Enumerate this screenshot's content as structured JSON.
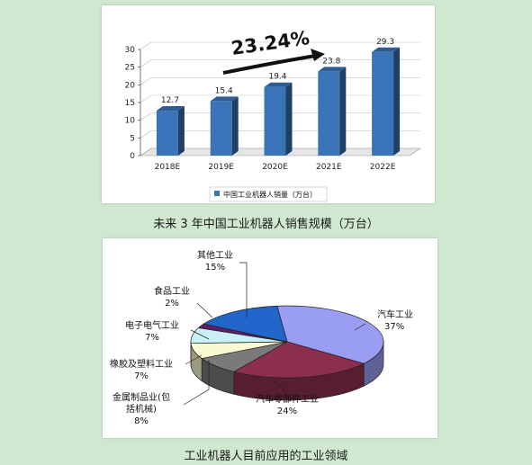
{
  "bar_caption": "未来 3 年中国工业机器人销售规模（万台）",
  "pie_caption": "工业机器人目前应用的工业领域",
  "colors": {
    "bar": "#3b73b8",
    "background": "#cfe8cf"
  },
  "chart_data": [
    {
      "type": "bar",
      "categories": [
        "2018E",
        "2019E",
        "2020E",
        "2021E",
        "2022E"
      ],
      "series": [
        {
          "name": "中国工业机器人销量（万台）",
          "values": [
            12.7,
            15.4,
            19.4,
            23.8,
            29.3
          ]
        }
      ],
      "data_labels": [
        "12.7",
        "15.4",
        "19.4",
        "23.8",
        "29.3"
      ],
      "yticks": [
        0,
        5,
        10,
        15,
        20,
        25,
        30
      ],
      "ylim": [
        0,
        30
      ],
      "annotation": "23.24%",
      "legend_position": "bottom"
    },
    {
      "type": "pie",
      "slices": [
        {
          "label": "汽车工业",
          "pct_label": "37%",
          "value": 37,
          "color": "#9a9ef2"
        },
        {
          "label": "汽车零部件工业",
          "pct_label": "24%",
          "value": 24,
          "color": "#8c2f4f"
        },
        {
          "label": "金属制品业(包括机械)",
          "label_lines": [
            "金属制品业(包",
            "括机械)"
          ],
          "pct_label": "8%",
          "value": 8,
          "color": "#7a7a7a"
        },
        {
          "label": "橡胶及塑料工业",
          "pct_label": "7%",
          "value": 7,
          "color": "#fafad2"
        },
        {
          "label": "电子电气工业",
          "pct_label": "7%",
          "value": 7,
          "color": "#c8f0f6"
        },
        {
          "label": "食品工业",
          "pct_label": "2%",
          "value": 2,
          "color": "#5a1f66"
        },
        {
          "label": "其他工业",
          "pct_label": "15%",
          "value": 15,
          "color": "#2266cc"
        }
      ]
    }
  ]
}
